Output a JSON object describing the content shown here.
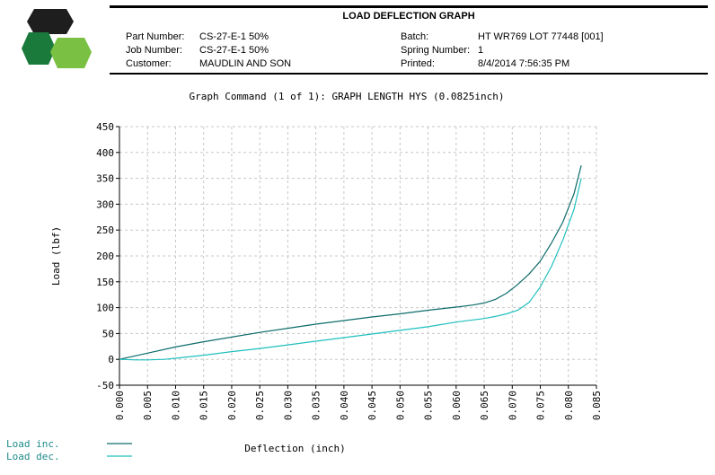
{
  "header": {
    "title": "LOAD DEFLECTION GRAPH",
    "fields_left": [
      {
        "label": "Part Number:",
        "value": "CS-27-E-1 50%"
      },
      {
        "label": "Job Number:",
        "value": "CS-27-E-1 50%"
      },
      {
        "label": "Customer:",
        "value": "MAUDLIN AND SON"
      }
    ],
    "fields_right": [
      {
        "label": "Batch:",
        "value": "HT WR769 LOT 77448 [001]"
      },
      {
        "label": "Spring Number:",
        "value": "1"
      },
      {
        "label": "Printed:",
        "value": "8/4/2014 7:56:35 PM"
      }
    ]
  },
  "logo": {
    "icon": "hexagon-logo-icon",
    "colors": [
      "#1e1e1e",
      "#1a7a3c",
      "#7ac143"
    ]
  },
  "chart_data": {
    "type": "line",
    "title": "Graph Command (1 of 1): GRAPH LENGTH HYS (0.0825inch)",
    "xlabel": "Deflection (inch)",
    "ylabel": "Load (lbf)",
    "xlim": [
      0.0,
      0.085
    ],
    "ylim": [
      -50,
      450
    ],
    "xticks": [
      "0.000",
      "0.005",
      "0.010",
      "0.015",
      "0.020",
      "0.025",
      "0.030",
      "0.035",
      "0.040",
      "0.045",
      "0.050",
      "0.055",
      "0.060",
      "0.065",
      "0.070",
      "0.075",
      "0.080",
      "0.085"
    ],
    "yticks": [
      "450",
      "400",
      "350",
      "300",
      "250",
      "200",
      "150",
      "100",
      "50",
      "0",
      "-50"
    ],
    "grid": true,
    "legend_position": "bottom-left",
    "series": [
      {
        "name": "Load inc.",
        "color": "#0e6b6b",
        "x": [
          0.0,
          0.005,
          0.01,
          0.015,
          0.02,
          0.025,
          0.03,
          0.035,
          0.04,
          0.045,
          0.05,
          0.055,
          0.06,
          0.063,
          0.065,
          0.067,
          0.069,
          0.071,
          0.073,
          0.075,
          0.077,
          0.079,
          0.081,
          0.0823
        ],
        "y": [
          0,
          12,
          24,
          34,
          43,
          52,
          60,
          68,
          75,
          82,
          88,
          95,
          101,
          105,
          109,
          116,
          128,
          145,
          165,
          190,
          225,
          265,
          320,
          375
        ]
      },
      {
        "name": "Load dec.",
        "color": "#1fbfbf",
        "x": [
          0.0823,
          0.081,
          0.079,
          0.077,
          0.075,
          0.073,
          0.071,
          0.069,
          0.067,
          0.065,
          0.06,
          0.055,
          0.05,
          0.045,
          0.04,
          0.035,
          0.03,
          0.025,
          0.02,
          0.015,
          0.01,
          0.008,
          0.005,
          0.003,
          0.0
        ],
        "y": [
          350,
          290,
          230,
          180,
          140,
          110,
          95,
          88,
          83,
          79,
          72,
          63,
          56,
          49,
          42,
          35,
          28,
          21,
          15,
          8,
          2,
          0,
          -1,
          -1,
          0
        ]
      }
    ]
  }
}
